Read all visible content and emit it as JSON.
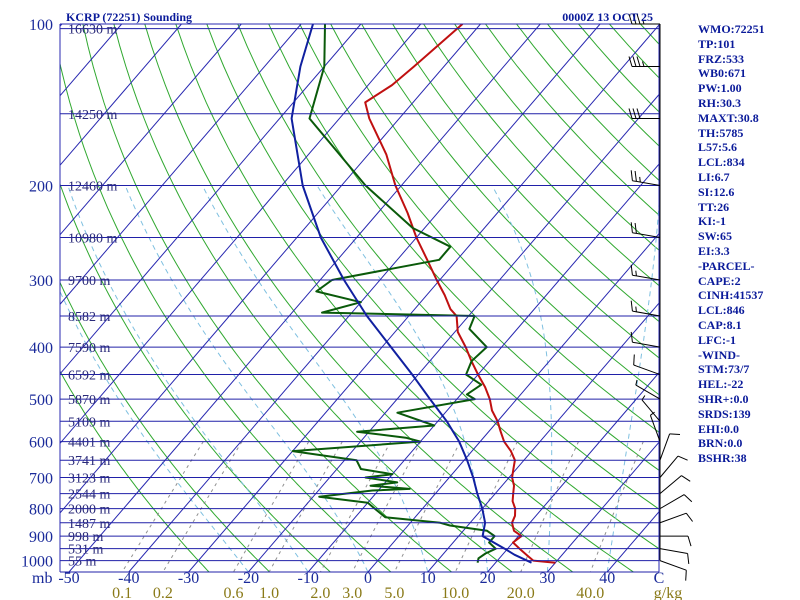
{
  "header": {
    "station": "KCRP (72251) Sounding",
    "time": "0000Z 13 OCT 25"
  },
  "stats": [
    "WMO:72251",
    "TP:101",
    "FRZ:533",
    "WB0:671",
    "PW:1.00",
    "RH:30.3",
    "MAXT:30.8",
    "TH:5785",
    "L57:5.6",
    "LCL:834",
    "LI:6.7",
    "SI:12.6",
    "TT:26",
    "KI:-1",
    "SW:65",
    "EI:3.3",
    "-PARCEL-",
    "CAPE:2",
    "CINH:41537",
    "LCL:846",
    "CAP:8.1",
    "LFC:-1",
    "-WIND-",
    "STM:73/7",
    "HEL:-22",
    "SHR+:0.0",
    "SRDS:139",
    "EHI:0.0",
    "BRN:0.0",
    "BSHR:38"
  ],
  "colors": {
    "isobar": "#2020a8",
    "isotherm": "#2828b0",
    "dry_adiabat": "#30a830",
    "moist_adiabat": "#7fc0e0",
    "mixing_ratio": "#909090",
    "temperature": "#c01010",
    "dewpoint": "#0a5a0a",
    "parcel": "#1020a0",
    "wind": "#000000"
  },
  "chart_data": {
    "type": "line",
    "subtype": "skew-t log-p sounding",
    "pressure_levels": [
      100,
      200,
      300,
      400,
      500,
      600,
      700,
      800,
      900,
      1000
    ],
    "pressure_labels": [
      "100",
      "200",
      "300",
      "400",
      "500",
      "600",
      "700",
      "800",
      "900",
      "1000"
    ],
    "pressure_unit_label": "mb",
    "temperature_ticks": [
      -50,
      -40,
      -30,
      -20,
      -10,
      0,
      10,
      20,
      30,
      40
    ],
    "temperature_tick_labels": [
      "-50",
      "-40",
      "-30",
      "-20",
      "-10",
      "0",
      "10",
      "20",
      "30",
      "40"
    ],
    "temperature_unit_label": "C",
    "mixing_ratio_labels": [
      "0.1",
      "0.2",
      "0.6",
      "1.0",
      "2.0",
      "3.0",
      "5.0",
      "10.0",
      "20.0",
      "40.0"
    ],
    "mixing_ratio_values": [
      0.1,
      0.2,
      0.6,
      1.0,
      2.0,
      3.0,
      5.0,
      10.0,
      20.0,
      40.0
    ],
    "mixing_ratio_unit_label": "g/kg",
    "heights": [
      {
        "p": 102,
        "label": "16630 m"
      },
      {
        "p": 147,
        "label": "14250 m"
      },
      {
        "p": 200,
        "label": "12460 m"
      },
      {
        "p": 250,
        "label": "10980 m"
      },
      {
        "p": 300,
        "label": "9700 m"
      },
      {
        "p": 350,
        "label": "8582 m"
      },
      {
        "p": 400,
        "label": "7590 m"
      },
      {
        "p": 450,
        "label": "6592 m"
      },
      {
        "p": 500,
        "label": "5870 m"
      },
      {
        "p": 550,
        "label": "5109 m"
      },
      {
        "p": 600,
        "label": "4401 m"
      },
      {
        "p": 650,
        "label": "3741 m"
      },
      {
        "p": 700,
        "label": "3123 m"
      },
      {
        "p": 750,
        "label": "2544 m"
      },
      {
        "p": 800,
        "label": "2000 m"
      },
      {
        "p": 850,
        "label": "1487 m"
      },
      {
        "p": 900,
        "label": "998 m"
      },
      {
        "p": 950,
        "label": "531 m"
      },
      {
        "p": 1000,
        "label": "55 m"
      }
    ],
    "series": [
      {
        "key": "temperature",
        "points": [
          [
            1009,
            30.0
          ],
          [
            1000,
            26.0
          ],
          [
            975,
            24.0
          ],
          [
            950,
            22.0
          ],
          [
            925,
            20.0
          ],
          [
            900,
            20.5
          ],
          [
            880,
            18.5
          ],
          [
            850,
            17.0
          ],
          [
            825,
            16.5
          ],
          [
            800,
            15.5
          ],
          [
            775,
            14.0
          ],
          [
            750,
            13.0
          ],
          [
            725,
            12.0
          ],
          [
            700,
            10.5
          ],
          [
            675,
            9.5
          ],
          [
            650,
            8.5
          ],
          [
            625,
            6.5
          ],
          [
            600,
            4.0
          ],
          [
            575,
            2.0
          ],
          [
            550,
            0.0
          ],
          [
            525,
            -2.5
          ],
          [
            500,
            -4.5
          ],
          [
            475,
            -7.0
          ],
          [
            450,
            -10.0
          ],
          [
            425,
            -13.0
          ],
          [
            400,
            -16.0
          ],
          [
            375,
            -19.5
          ],
          [
            350,
            -22.0
          ],
          [
            340,
            -24.0
          ],
          [
            320,
            -27.0
          ],
          [
            300,
            -30.5
          ],
          [
            275,
            -35.0
          ],
          [
            250,
            -40.0
          ],
          [
            225,
            -45.0
          ],
          [
            200,
            -51.0
          ],
          [
            175,
            -57.0
          ],
          [
            150,
            -65.0
          ],
          [
            140,
            -68.0
          ],
          [
            130,
            -66.0
          ],
          [
            120,
            -65.0
          ],
          [
            100,
            -63.0
          ]
        ]
      },
      {
        "key": "dewpoint",
        "points": [
          [
            1009,
            17.0
          ],
          [
            990,
            16.5
          ],
          [
            970,
            17.0
          ],
          [
            950,
            18.0
          ],
          [
            925,
            16.0
          ],
          [
            900,
            16.0
          ],
          [
            880,
            14.0
          ],
          [
            860,
            7.0
          ],
          [
            850,
            5.0
          ],
          [
            830,
            -5.0
          ],
          [
            800,
            -8.0
          ],
          [
            780,
            -10.0
          ],
          [
            760,
            -19.0
          ],
          [
            740,
            -11.0
          ],
          [
            735,
            -5.0
          ],
          [
            725,
            -12.0
          ],
          [
            715,
            -8.0
          ],
          [
            700,
            -14.0
          ],
          [
            690,
            -10.0
          ],
          [
            675,
            -16.0
          ],
          [
            650,
            -18.0
          ],
          [
            625,
            -30.0
          ],
          [
            600,
            -10.0
          ],
          [
            590,
            -13.0
          ],
          [
            575,
            -22.0
          ],
          [
            560,
            -10.0
          ],
          [
            530,
            -18.0
          ],
          [
            500,
            -7.0
          ],
          [
            490,
            -9.0
          ],
          [
            470,
            -8.0
          ],
          [
            450,
            -12.0
          ],
          [
            425,
            -13.0
          ],
          [
            400,
            -12.5
          ],
          [
            370,
            -18.0
          ],
          [
            350,
            -19.0
          ],
          [
            345,
            -45.0
          ],
          [
            330,
            -40.0
          ],
          [
            315,
            -49.0
          ],
          [
            300,
            -48.0
          ],
          [
            275,
            -33.0
          ],
          [
            260,
            -33.0
          ],
          [
            240,
            -42.0
          ],
          [
            200,
            -56.0
          ],
          [
            150,
            -75.0
          ],
          [
            120,
            -80.0
          ],
          [
            100,
            -86.0
          ]
        ]
      },
      {
        "key": "parcel",
        "points": [
          [
            1009,
            26.0
          ],
          [
            975,
            22.0
          ],
          [
            950,
            19.5
          ],
          [
            900,
            14.0
          ],
          [
            850,
            12.5
          ],
          [
            800,
            10.0
          ],
          [
            750,
            7.0
          ],
          [
            700,
            4.0
          ],
          [
            650,
            0.5
          ],
          [
            600,
            -3.5
          ],
          [
            550,
            -8.5
          ],
          [
            500,
            -14.5
          ],
          [
            450,
            -21.0
          ],
          [
            400,
            -28.5
          ],
          [
            350,
            -37.0
          ],
          [
            300,
            -46.0
          ],
          [
            250,
            -56.0
          ],
          [
            200,
            -66.5
          ],
          [
            150,
            -78.0
          ],
          [
            120,
            -84.0
          ],
          [
            100,
            -88.0
          ]
        ]
      }
    ],
    "wind_profile": [
      {
        "p": 1000,
        "dir": 110,
        "spd": 10
      },
      {
        "p": 950,
        "dir": 100,
        "spd": 10
      },
      {
        "p": 900,
        "dir": 90,
        "spd": 10
      },
      {
        "p": 850,
        "dir": 70,
        "spd": 10
      },
      {
        "p": 800,
        "dir": 60,
        "spd": 10
      },
      {
        "p": 750,
        "dir": 50,
        "spd": 10
      },
      {
        "p": 700,
        "dir": 40,
        "spd": 10
      },
      {
        "p": 650,
        "dir": 20,
        "spd": 10
      },
      {
        "p": 600,
        "dir": 340,
        "spd": 5
      },
      {
        "p": 550,
        "dir": 320,
        "spd": 5
      },
      {
        "p": 500,
        "dir": 300,
        "spd": 5
      },
      {
        "p": 450,
        "dir": 290,
        "spd": 10
      },
      {
        "p": 400,
        "dir": 280,
        "spd": 10
      },
      {
        "p": 350,
        "dir": 280,
        "spd": 15
      },
      {
        "p": 300,
        "dir": 280,
        "spd": 15
      },
      {
        "p": 250,
        "dir": 280,
        "spd": 20
      },
      {
        "p": 200,
        "dir": 280,
        "spd": 25
      },
      {
        "p": 150,
        "dir": 270,
        "spd": 30
      },
      {
        "p": 120,
        "dir": 270,
        "spd": 35
      },
      {
        "p": 100,
        "dir": 270,
        "spd": 35
      }
    ]
  }
}
